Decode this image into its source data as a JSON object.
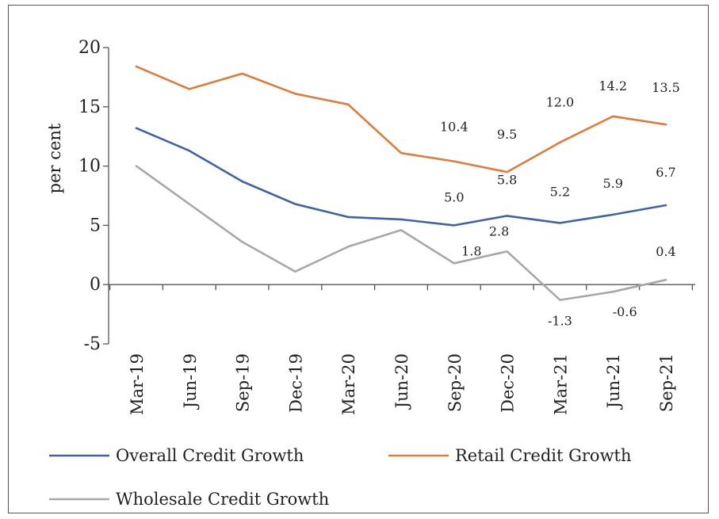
{
  "chart_data": {
    "type": "line",
    "ylabel": "per cent",
    "xlabel": "",
    "ylim": [
      -5,
      20
    ],
    "yticks": [
      "20",
      "15",
      "10",
      "5",
      "0",
      "-5"
    ],
    "categories": [
      "Mar-19",
      "Jun-19",
      "Sep-19",
      "Dec-19",
      "Mar-20",
      "Jun-20",
      "Sep-20",
      "Dec-20",
      "Mar-21",
      "Jun-21",
      "Sep-21"
    ],
    "legend_position": "bottom",
    "grid": false,
    "series": [
      {
        "name": "Overall Credit Growth",
        "color": "#3f63a4",
        "values": [
          13.2,
          11.3,
          8.7,
          6.8,
          5.7,
          5.5,
          5.0,
          5.8,
          5.2,
          5.9,
          6.7
        ],
        "labels": [
          null,
          null,
          null,
          null,
          null,
          null,
          "5.0",
          "5.8",
          "5.2",
          "5.9",
          "6.7"
        ]
      },
      {
        "name": "Retail Credit Growth",
        "color": "#e07b39",
        "values": [
          18.4,
          16.5,
          17.8,
          16.1,
          15.2,
          11.1,
          10.4,
          9.5,
          12.0,
          14.2,
          13.5
        ],
        "labels": [
          null,
          null,
          null,
          null,
          null,
          null,
          "10.4",
          "9.5",
          "12.0",
          "14.2",
          "13.5"
        ]
      },
      {
        "name": "Wholesale Credit Growth",
        "color": "#a8a8a8",
        "values": [
          10.0,
          6.8,
          3.6,
          1.1,
          3.2,
          4.6,
          1.8,
          2.8,
          -1.3,
          -0.6,
          0.4
        ],
        "labels": [
          null,
          null,
          null,
          null,
          null,
          null,
          "1.8",
          "2.8",
          "-1.3",
          "-0.6",
          "0.4"
        ]
      }
    ]
  }
}
